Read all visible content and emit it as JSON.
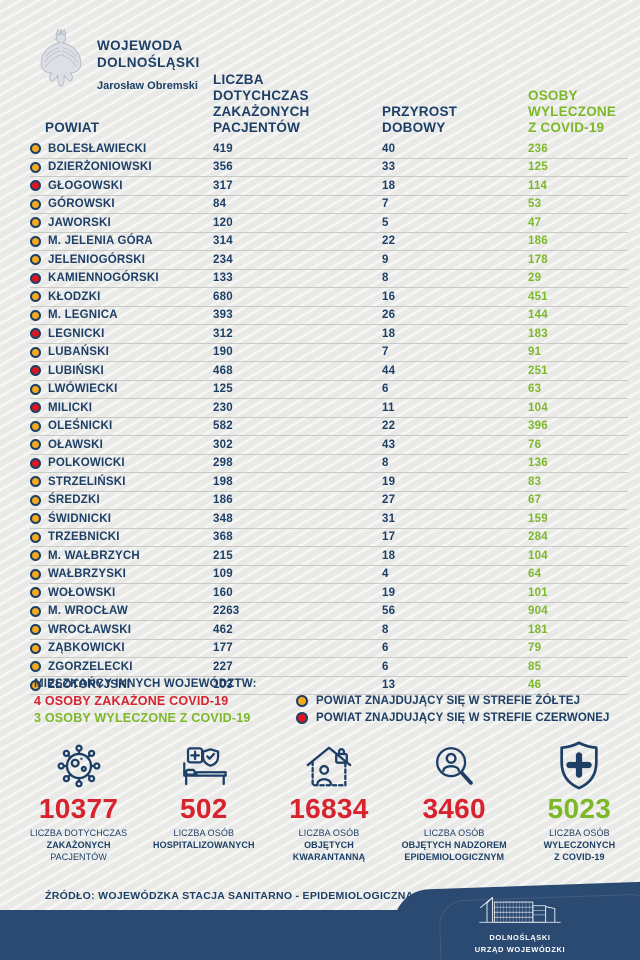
{
  "brand": {
    "title_line1": "WOJEWODA",
    "title_line2": "DOLNOŚLĄSKI",
    "person": "Jarosław Obremski"
  },
  "table": {
    "col_powiat": "POWIAT",
    "col_infected_lines": [
      "LICZBA",
      "DOTYCHCZAS",
      "ZAKAŻONYCH",
      "PACJENTÓW"
    ],
    "col_daily_lines": [
      "PRZYROST",
      "DOBOWY"
    ],
    "col_recovered_lines": [
      "OSOBY",
      "WYLECZONE",
      "Z COVID-19"
    ],
    "rows": [
      {
        "zone": "yellow",
        "name": "BOLESŁAWIECKI",
        "infected": "419",
        "daily": "40",
        "recovered": "236"
      },
      {
        "zone": "yellow",
        "name": "DZIERŻONIOWSKI",
        "infected": "356",
        "daily": "33",
        "recovered": "125"
      },
      {
        "zone": "red",
        "name": "GŁOGOWSKI",
        "infected": "317",
        "daily": "18",
        "recovered": "114"
      },
      {
        "zone": "yellow",
        "name": "GÓROWSKI",
        "infected": "84",
        "daily": "7",
        "recovered": "53"
      },
      {
        "zone": "yellow",
        "name": "JAWORSKI",
        "infected": "120",
        "daily": "5",
        "recovered": "47"
      },
      {
        "zone": "yellow",
        "name": "M. JELENIA GÓRA",
        "infected": "314",
        "daily": "22",
        "recovered": "186"
      },
      {
        "zone": "yellow",
        "name": "JELENIOGÓRSKI",
        "infected": "234",
        "daily": "9",
        "recovered": "178"
      },
      {
        "zone": "red",
        "name": "KAMIENNOGÓRSKI",
        "infected": "133",
        "daily": "8",
        "recovered": "29"
      },
      {
        "zone": "yellow",
        "name": "KŁODZKI",
        "infected": "680",
        "daily": "16",
        "recovered": "451"
      },
      {
        "zone": "yellow",
        "name": "M. LEGNICA",
        "infected": "393",
        "daily": "26",
        "recovered": "144"
      },
      {
        "zone": "red",
        "name": "LEGNICKI",
        "infected": "312",
        "daily": "18",
        "recovered": "183"
      },
      {
        "zone": "yellow",
        "name": "LUBAŃSKI",
        "infected": "190",
        "daily": "7",
        "recovered": "91"
      },
      {
        "zone": "red",
        "name": "LUBIŃSKI",
        "infected": "468",
        "daily": "44",
        "recovered": "251"
      },
      {
        "zone": "yellow",
        "name": "LWÓWIECKI",
        "infected": "125",
        "daily": "6",
        "recovered": "63"
      },
      {
        "zone": "red",
        "name": "MILICKI",
        "infected": "230",
        "daily": "11",
        "recovered": "104"
      },
      {
        "zone": "yellow",
        "name": "OLEŚNICKI",
        "infected": "582",
        "daily": "22",
        "recovered": "396"
      },
      {
        "zone": "yellow",
        "name": "OŁAWSKI",
        "infected": "302",
        "daily": "43",
        "recovered": "76"
      },
      {
        "zone": "red",
        "name": "POLKOWICKI",
        "infected": "298",
        "daily": "8",
        "recovered": "136"
      },
      {
        "zone": "yellow",
        "name": "STRZELIŃSKI",
        "infected": "198",
        "daily": "19",
        "recovered": "83"
      },
      {
        "zone": "yellow",
        "name": "ŚREDZKI",
        "infected": "186",
        "daily": "27",
        "recovered": "67"
      },
      {
        "zone": "yellow",
        "name": "ŚWIDNICKI",
        "infected": "348",
        "daily": "31",
        "recovered": "159"
      },
      {
        "zone": "yellow",
        "name": "TRZEBNICKI",
        "infected": "368",
        "daily": "17",
        "recovered": "284"
      },
      {
        "zone": "yellow",
        "name": "M. WAŁBRZYCH",
        "infected": "215",
        "daily": "18",
        "recovered": "104"
      },
      {
        "zone": "yellow",
        "name": "WAŁBRZYSKI",
        "infected": "109",
        "daily": "4",
        "recovered": "64"
      },
      {
        "zone": "yellow",
        "name": "WOŁOWSKI",
        "infected": "160",
        "daily": "19",
        "recovered": "101"
      },
      {
        "zone": "yellow",
        "name": "M. WROCŁAW",
        "infected": "2263",
        "daily": "56",
        "recovered": "904"
      },
      {
        "zone": "yellow",
        "name": "WROCŁAWSKI",
        "infected": "462",
        "daily": "8",
        "recovered": "181"
      },
      {
        "zone": "yellow",
        "name": "ZĄBKOWICKI",
        "infected": "177",
        "daily": "6",
        "recovered": "79"
      },
      {
        "zone": "yellow",
        "name": "ZGORZELECKI",
        "infected": "227",
        "daily": "6",
        "recovered": "85"
      },
      {
        "zone": "yellow",
        "name": "ZŁOTORYJSKI",
        "infected": "103",
        "daily": "13",
        "recovered": "46"
      }
    ]
  },
  "other_regions": {
    "title": "MIESZKAŃCY INNYCH WOJEWÓDZTW:",
    "infected": "4 OSOBY ZAKAŻONE COVID-19",
    "recovered": "3 OSOBY WYLECZONE Z COVID-19"
  },
  "legend": [
    {
      "zone": "yellow",
      "label": "POWIAT ZNAJDUJĄCY SIĘ W STREFIE ŻÓŁTEJ"
    },
    {
      "zone": "red",
      "label": "POWIAT ZNAJDUJĄCY SIĘ W STREFIE CZERWONEJ"
    }
  ],
  "stats": [
    {
      "icon": "virus-icon",
      "value": "10377",
      "color": "red",
      "label_lines": [
        [
          {
            "t": "LICZBA DOTYCHCZAS",
            "b": false
          }
        ],
        [
          {
            "t": "ZAKAŻONYCH",
            "b": true
          },
          {
            "t": " PACJENTÓW",
            "b": false
          }
        ]
      ]
    },
    {
      "icon": "hospital-bed-icon",
      "value": "502",
      "color": "red",
      "label_lines": [
        [
          {
            "t": "LICZBA OSÓB",
            "b": false
          }
        ],
        [
          {
            "t": "HOSPITALIZOWANYCH",
            "b": true
          }
        ]
      ]
    },
    {
      "icon": "quarantine-house-icon",
      "value": "16834",
      "color": "red",
      "label_lines": [
        [
          {
            "t": "LICZBA OSÓB",
            "b": false
          }
        ],
        [
          {
            "t": "OBJĘTYCH",
            "b": true
          }
        ],
        [
          {
            "t": "KWARANTANNĄ",
            "b": true
          }
        ]
      ]
    },
    {
      "icon": "magnifier-person-icon",
      "value": "3460",
      "color": "red",
      "label_lines": [
        [
          {
            "t": "LICZBA OSÓB",
            "b": false
          }
        ],
        [
          {
            "t": "OBJĘTYCH NADZOREM",
            "b": true
          }
        ],
        [
          {
            "t": "EPIDEMIOLOGICZNYM",
            "b": true
          }
        ]
      ]
    },
    {
      "icon": "shield-cross-icon",
      "value": "5023",
      "color": "green",
      "label_lines": [
        [
          {
            "t": "LICZBA OSÓB",
            "b": false
          }
        ],
        [
          {
            "t": "WYLECZONYCH",
            "b": true
          }
        ],
        [
          {
            "t": "Z COVID-19",
            "b": true
          }
        ]
      ]
    }
  ],
  "footer": {
    "source": "ŹRÓDŁO: WOJEWÓDZKA STACJA SANITARNO - EPIDEMIOLOGICZNA",
    "agency_line1": "DOLNOŚLĄSKI",
    "agency_line2": "URZĄD WOJEWÓDZKI"
  },
  "colors": {
    "navy": "#1d3f66",
    "red": "#d8232e",
    "red_dot": "#e0141e",
    "green": "#7cb829",
    "yellow": "#f5a91d",
    "band_navy": "#2b4a72"
  }
}
